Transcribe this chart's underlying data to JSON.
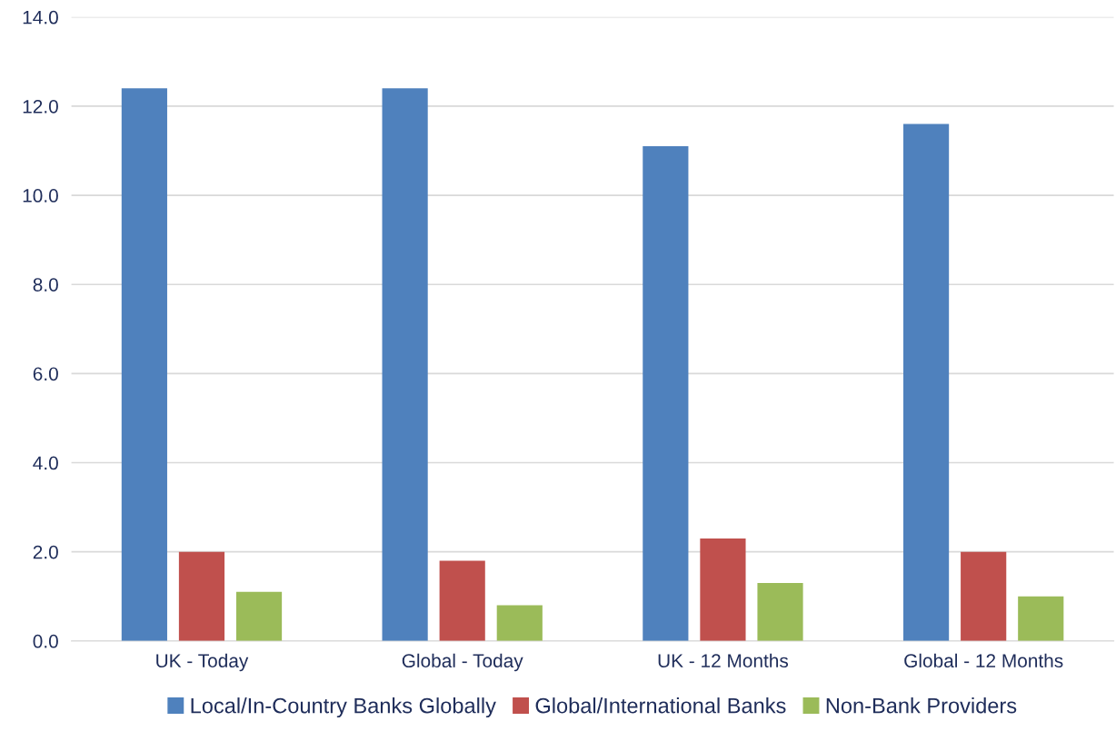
{
  "chart_data": {
    "type": "bar",
    "categories": [
      "UK - Today",
      "Global - Today",
      "UK - 12 Months",
      "Global - 12 Months"
    ],
    "series": [
      {
        "name": "Local/In-Country Banks Globally",
        "color": "#4f81bd",
        "values": [
          12.4,
          12.4,
          11.1,
          11.6
        ]
      },
      {
        "name": "Global/International Banks",
        "color": "#c0504d",
        "values": [
          2.0,
          1.8,
          2.3,
          2.0
        ]
      },
      {
        "name": "Non-Bank Providers",
        "color": "#9bbb59",
        "values": [
          1.1,
          0.8,
          1.3,
          1.0
        ]
      }
    ],
    "ylim": [
      0,
      14
    ],
    "yticks": [
      {
        "value": 0,
        "label": "0.0"
      },
      {
        "value": 2,
        "label": "2.0"
      },
      {
        "value": 4,
        "label": "4.0"
      },
      {
        "value": 6,
        "label": "6.0"
      },
      {
        "value": 8,
        "label": "8.0"
      },
      {
        "value": 10,
        "label": "10.0"
      },
      {
        "value": 12,
        "label": "12.0"
      },
      {
        "value": 14,
        "label": "14.0"
      }
    ],
    "grid": "y",
    "legend": "bottom"
  }
}
